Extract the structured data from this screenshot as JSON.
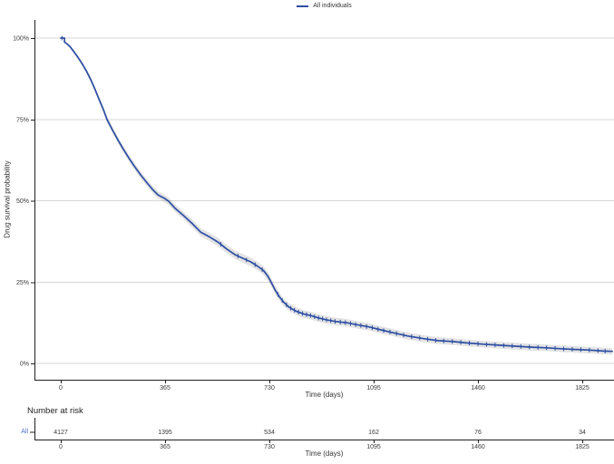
{
  "legend": {
    "label": "All individuals"
  },
  "axes": {
    "y_label": "Drug survival probability",
    "x_label": "Time (days)"
  },
  "risk_table": {
    "title": "Number at risk",
    "x_label": "Time (days)"
  },
  "colors": {
    "curve": "#2d4ea3",
    "ci_band": "rgba(127,127,127,0.22)",
    "grid": "#d7d7d7",
    "axis": "#1f1f1f",
    "tick_text": "#3a3a3a",
    "risk_row_label": "#4a6fc9",
    "background": "#ffffff"
  },
  "chart_data": {
    "type": "line",
    "subtype": "kaplan-meier-survival",
    "xlabel": "Time (days)",
    "ylabel": "Drug survival probability",
    "x_ticks": [
      0,
      365,
      730,
      1095,
      1460,
      1825
    ],
    "y_tick_values": [
      0,
      25,
      50,
      75,
      100
    ],
    "y_tick_labels": [
      "0%",
      "25%",
      "50%",
      "75%",
      "100%"
    ],
    "xlim": [
      0,
      1940
    ],
    "ylim": [
      0,
      100
    ],
    "grid": true,
    "legend_position": "top-center",
    "series": [
      {
        "name": "All individuals",
        "color": "#2d4ea3",
        "points": [
          [
            0,
            100
          ],
          [
            13,
            100
          ],
          [
            13,
            98.8
          ],
          [
            22,
            98.2
          ],
          [
            32,
            97.4
          ],
          [
            45,
            95.9
          ],
          [
            60,
            94.1
          ],
          [
            75,
            92.1
          ],
          [
            90,
            89.8
          ],
          [
            105,
            87.2
          ],
          [
            120,
            84.2
          ],
          [
            135,
            81.0
          ],
          [
            150,
            77.8
          ],
          [
            162,
            75.0
          ],
          [
            180,
            71.9
          ],
          [
            200,
            68.7
          ],
          [
            220,
            65.7
          ],
          [
            240,
            62.9
          ],
          [
            260,
            60.3
          ],
          [
            280,
            57.9
          ],
          [
            300,
            55.7
          ],
          [
            320,
            53.6
          ],
          [
            340,
            51.8
          ],
          [
            365,
            50.6
          ],
          [
            378,
            49.8
          ],
          [
            400,
            47.7
          ],
          [
            430,
            45.4
          ],
          [
            460,
            43.0
          ],
          [
            490,
            40.3
          ],
          [
            520,
            38.9
          ],
          [
            550,
            37.3
          ],
          [
            580,
            35.2
          ],
          [
            610,
            33.4
          ],
          [
            640,
            32.2
          ],
          [
            665,
            31.2
          ],
          [
            690,
            29.8
          ],
          [
            710,
            28.5
          ],
          [
            725,
            26.8
          ],
          [
            736,
            25.0
          ],
          [
            750,
            22.6
          ],
          [
            765,
            20.5
          ],
          [
            780,
            18.8
          ],
          [
            800,
            17.2
          ],
          [
            825,
            16.0
          ],
          [
            850,
            15.2
          ],
          [
            875,
            14.7
          ],
          [
            900,
            14.0
          ],
          [
            930,
            13.4
          ],
          [
            960,
            12.9
          ],
          [
            1000,
            12.5
          ],
          [
            1040,
            11.8
          ],
          [
            1080,
            11.2
          ],
          [
            1120,
            10.3
          ],
          [
            1160,
            9.5
          ],
          [
            1215,
            8.4
          ],
          [
            1270,
            7.6
          ],
          [
            1320,
            7.0
          ],
          [
            1374,
            6.7
          ],
          [
            1420,
            6.3
          ],
          [
            1480,
            5.9
          ],
          [
            1533,
            5.6
          ],
          [
            1590,
            5.3
          ],
          [
            1650,
            5.0
          ],
          [
            1700,
            4.8
          ],
          [
            1750,
            4.5
          ],
          [
            1800,
            4.3
          ],
          [
            1850,
            4.1
          ],
          [
            1900,
            3.8
          ],
          [
            1930,
            3.7
          ]
        ],
        "censor_times": [
          4,
          560,
          620,
          650,
          680,
          705,
          760,
          775,
          790,
          805,
          818,
          832,
          846,
          860,
          874,
          888,
          902,
          916,
          930,
          945,
          960,
          978,
          996,
          1014,
          1032,
          1050,
          1070,
          1090,
          1110,
          1130,
          1152,
          1175,
          1200,
          1228,
          1256,
          1284,
          1312,
          1340,
          1370,
          1400,
          1430,
          1460,
          1490,
          1520,
          1550,
          1580,
          1610,
          1640,
          1670,
          1700,
          1730,
          1760,
          1790,
          1820,
          1850,
          1880,
          1905
        ],
        "ci_halfwidth_pct": [
          [
            0,
            0.15
          ],
          [
            60,
            0.5
          ],
          [
            120,
            0.8
          ],
          [
            200,
            1.0
          ],
          [
            300,
            1.1
          ],
          [
            420,
            1.2
          ],
          [
            600,
            1.3
          ],
          [
            730,
            1.3
          ],
          [
            780,
            1.2
          ],
          [
            1000,
            1.15
          ],
          [
            1300,
            1.05
          ],
          [
            1930,
            1.0
          ]
        ]
      }
    ],
    "number_at_risk": {
      "times": [
        0,
        365,
        730,
        1095,
        1460,
        1825
      ],
      "rows": [
        {
          "label": "All",
          "counts": [
            4127,
            1395,
            534,
            162,
            76,
            34
          ]
        }
      ]
    }
  }
}
